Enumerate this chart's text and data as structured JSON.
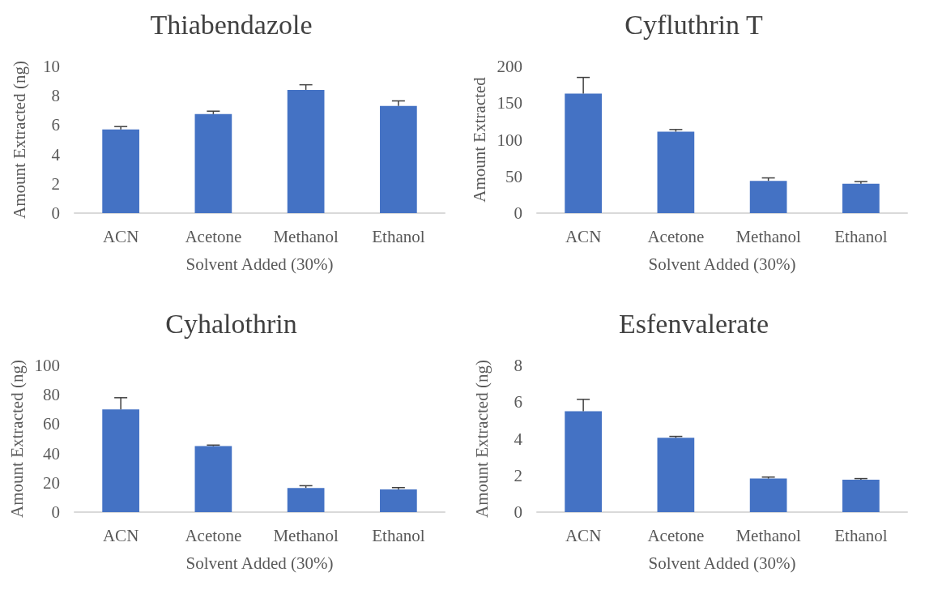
{
  "chart_data": [
    {
      "type": "bar",
      "title": "Thiabendazole",
      "xlabel": "Solvent Added (30%)",
      "ylabel": "Amount Extracted (ng)",
      "categories": [
        "ACN",
        "Acetone",
        "Methanol",
        "Ethanol"
      ],
      "values": [
        5.7,
        6.75,
        8.4,
        7.3
      ],
      "errors": [
        [
          5.7,
          5.9
        ],
        [
          6.75,
          6.95
        ],
        [
          8.4,
          8.75
        ],
        [
          7.3,
          7.65
        ]
      ],
      "color": "#4472c4",
      "ylim": [
        0,
        10
      ],
      "yticks": [
        0,
        2,
        4,
        6,
        8,
        10
      ],
      "grid": false
    },
    {
      "type": "bar",
      "title": "Cyfluthrin T",
      "xlabel": "Solvent Added (30%)",
      "ylabel": "Amount Extracted",
      "categories": [
        "ACN",
        "Acetone",
        "Methanol",
        "Ethanol"
      ],
      "values": [
        163,
        111,
        44,
        40
      ],
      "errors": [
        [
          163,
          185
        ],
        [
          111,
          114
        ],
        [
          44,
          48
        ],
        [
          40,
          43
        ]
      ],
      "color": "#4472c4",
      "ylim": [
        0,
        200
      ],
      "yticks": [
        0,
        50,
        100,
        150,
        200
      ],
      "grid": false
    },
    {
      "type": "bar",
      "title": "Cyhalothrin",
      "xlabel": "Solvent Added (30%)",
      "ylabel": "Amount Extracted (ng)",
      "categories": [
        "ACN",
        "Acetone",
        "Methanol",
        "Ethanol"
      ],
      "values": [
        70,
        45,
        16.5,
        15.5
      ],
      "errors": [
        [
          70,
          78
        ],
        [
          45,
          45.7
        ],
        [
          16.5,
          18
        ],
        [
          15.5,
          16.7
        ]
      ],
      "color": "#4472c4",
      "ylim": [
        0,
        100
      ],
      "yticks": [
        0,
        20,
        40,
        60,
        80,
        100
      ],
      "grid": false
    },
    {
      "type": "bar",
      "title": "Esfenvalerate",
      "xlabel": "Solvent Added (30%)",
      "ylabel": "Amount Extracted (ng)",
      "categories": [
        "ACN",
        "Acetone",
        "Methanol",
        "Ethanol"
      ],
      "values": [
        5.5,
        4.05,
        1.83,
        1.77
      ],
      "errors": [
        [
          5.5,
          6.15
        ],
        [
          4.05,
          4.13
        ],
        [
          1.83,
          1.91
        ],
        [
          1.77,
          1.83
        ]
      ],
      "color": "#4472c4",
      "ylim": [
        0,
        8
      ],
      "yticks": [
        0,
        2,
        4,
        6,
        8
      ],
      "grid": false
    }
  ]
}
